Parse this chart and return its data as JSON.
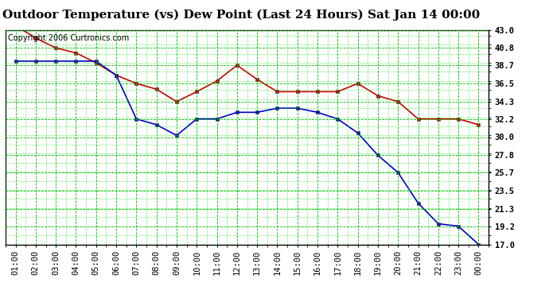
{
  "title": "Outdoor Temperature (vs) Dew Point (Last 24 Hours) Sat Jan 14 00:00",
  "copyright": "Copyright 2006 Curtronics.com",
  "x_labels": [
    "01:00",
    "02:00",
    "03:00",
    "04:00",
    "05:00",
    "06:00",
    "07:00",
    "08:00",
    "09:00",
    "10:00",
    "11:00",
    "12:00",
    "13:00",
    "14:00",
    "15:00",
    "16:00",
    "17:00",
    "18:00",
    "19:00",
    "20:00",
    "21:00",
    "22:00",
    "23:00",
    "00:00"
  ],
  "temp_values": [
    43.5,
    42.0,
    40.8,
    40.2,
    39.0,
    37.5,
    36.5,
    35.8,
    34.3,
    35.5,
    36.8,
    38.7,
    37.0,
    35.5,
    35.5,
    35.5,
    35.5,
    36.5,
    35.0,
    34.3,
    32.2,
    32.2,
    32.2,
    31.5
  ],
  "dew_values": [
    39.2,
    39.2,
    39.2,
    39.2,
    39.2,
    37.5,
    32.2,
    31.5,
    30.2,
    32.2,
    32.2,
    33.0,
    33.0,
    33.5,
    33.5,
    33.0,
    32.2,
    30.5,
    27.8,
    25.7,
    22.0,
    19.5,
    19.2,
    17.0
  ],
  "temp_color": "#cc0000",
  "dew_color": "#0000cc",
  "bg_color": "#ffffff",
  "plot_bg": "#ffffff",
  "grid_major_color": "#00bb00",
  "grid_minor_color": "#00dd00",
  "ymin": 17.0,
  "ymax": 43.0,
  "yticks": [
    43.0,
    40.8,
    38.7,
    36.5,
    34.3,
    32.2,
    30.0,
    27.8,
    25.7,
    23.5,
    21.3,
    19.2,
    17.0
  ],
  "title_fontsize": 11,
  "copyright_fontsize": 7,
  "tick_fontsize": 7.5,
  "marker": "s",
  "marker_size": 3,
  "linewidth": 1.2
}
